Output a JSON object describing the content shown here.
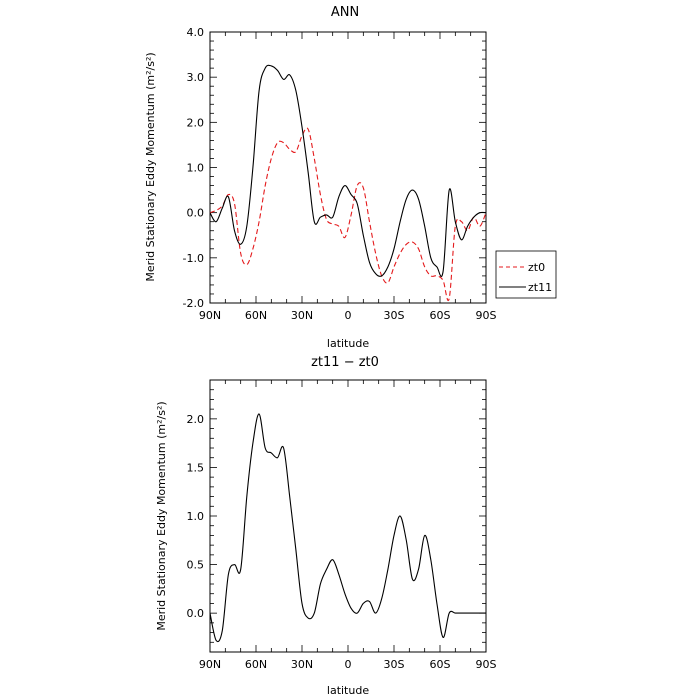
{
  "charts": [
    {
      "id": "top",
      "type": "line",
      "title": "ANN",
      "xlabel": "latitude",
      "ylabel": "Merid Stationary Eddy Momentum  (m²/s²)",
      "x_direction": "north-to-south",
      "xlim": [
        90,
        -90
      ],
      "ylim": [
        -2.0,
        4.0
      ],
      "x_tick_labels": [
        "90N",
        "60N",
        "30N",
        "0",
        "30S",
        "60S",
        "90S"
      ],
      "y_tick_labels": [
        "-2.0",
        "-1.0",
        "0.0",
        "1.0",
        "2.0",
        "3.0",
        "4.0"
      ],
      "y_tick_values": [
        -2,
        -1,
        0,
        1,
        2,
        3,
        4
      ],
      "legend_position": "outside-right",
      "series": [
        {
          "name": "zt0",
          "color": "#e41a1c",
          "dash": "dashed",
          "x": [
            90,
            86,
            82,
            78,
            74,
            70,
            66,
            62,
            58,
            54,
            50,
            46,
            42,
            38,
            34,
            30,
            26,
            22,
            18,
            14,
            10,
            6,
            2,
            -2,
            -6,
            -10,
            -14,
            -18,
            -22,
            -26,
            -30,
            -34,
            -38,
            -42,
            -46,
            -50,
            -54,
            -58,
            -62,
            -66,
            -70,
            -74,
            -78,
            -82,
            -86,
            -90
          ],
          "y": [
            0.0,
            0.05,
            0.15,
            0.4,
            0.2,
            -0.9,
            -1.15,
            -0.8,
            -0.2,
            0.6,
            1.2,
            1.55,
            1.55,
            1.4,
            1.35,
            1.7,
            1.85,
            1.2,
            0.4,
            -0.15,
            -0.25,
            -0.3,
            -0.55,
            -0.05,
            0.6,
            0.55,
            -0.2,
            -0.9,
            -1.4,
            -1.55,
            -1.2,
            -0.9,
            -0.7,
            -0.65,
            -0.8,
            -1.2,
            -1.4,
            -1.4,
            -1.5,
            -1.9,
            -0.3,
            -0.2,
            -0.4,
            -0.1,
            -0.3,
            0.0
          ]
        },
        {
          "name": "zt11",
          "color": "#000000",
          "dash": "solid",
          "x": [
            90,
            86,
            82,
            78,
            74,
            70,
            66,
            62,
            58,
            54,
            50,
            46,
            42,
            38,
            34,
            30,
            26,
            22,
            18,
            14,
            10,
            6,
            2,
            -2,
            -6,
            -10,
            -14,
            -18,
            -22,
            -26,
            -30,
            -34,
            -38,
            -42,
            -46,
            -50,
            -54,
            -58,
            -62,
            -66,
            -70,
            -74,
            -78,
            -82,
            -86,
            -90
          ],
          "y": [
            0.0,
            -0.2,
            0.1,
            0.35,
            -0.4,
            -0.7,
            -0.3,
            1.0,
            2.7,
            3.2,
            3.25,
            3.15,
            2.95,
            3.05,
            2.7,
            1.9,
            0.9,
            -0.2,
            -0.1,
            -0.05,
            -0.1,
            0.35,
            0.6,
            0.4,
            0.2,
            -0.5,
            -1.1,
            -1.35,
            -1.4,
            -1.2,
            -0.8,
            -0.2,
            0.3,
            0.5,
            0.3,
            -0.3,
            -1.0,
            -1.2,
            -1.3,
            0.5,
            -0.2,
            -0.6,
            -0.3,
            -0.1,
            0.0,
            0.0
          ]
        }
      ]
    },
    {
      "id": "bottom",
      "type": "line",
      "title": "zt11 − zt0",
      "xlabel": "latitude",
      "ylabel": "Merid Stationary Eddy Momentum  (m²/s²)",
      "x_direction": "north-to-south",
      "xlim": [
        90,
        -90
      ],
      "ylim": [
        -0.4,
        2.4
      ],
      "x_tick_labels": [
        "90N",
        "60N",
        "30N",
        "0",
        "30S",
        "60S",
        "90S"
      ],
      "y_tick_labels": [
        "0.0",
        "0.5",
        "1.0",
        "1.5",
        "2.0"
      ],
      "y_tick_values": [
        0,
        0.5,
        1.0,
        1.5,
        2.0
      ],
      "series": [
        {
          "name": "",
          "color": "#000000",
          "dash": "solid",
          "x": [
            90,
            86,
            82,
            78,
            74,
            70,
            66,
            62,
            58,
            54,
            50,
            46,
            42,
            38,
            34,
            30,
            26,
            22,
            18,
            14,
            10,
            6,
            2,
            -2,
            -6,
            -10,
            -14,
            -18,
            -22,
            -26,
            -30,
            -34,
            -38,
            -42,
            -46,
            -50,
            -54,
            -58,
            -62,
            -66,
            -70,
            -74,
            -78,
            -82,
            -86,
            -90
          ],
          "y": [
            0.0,
            -0.28,
            -0.18,
            0.4,
            0.5,
            0.45,
            1.2,
            1.75,
            2.05,
            1.7,
            1.65,
            1.6,
            1.7,
            1.2,
            0.65,
            0.1,
            -0.05,
            0.0,
            0.3,
            0.45,
            0.55,
            0.4,
            0.2,
            0.05,
            0.0,
            0.1,
            0.12,
            0.0,
            0.15,
            0.45,
            0.8,
            1.0,
            0.75,
            0.35,
            0.45,
            0.8,
            0.55,
            0.1,
            -0.25,
            0.0,
            0.0,
            0.0,
            0.0,
            0.0,
            0.0,
            0.0
          ]
        }
      ]
    }
  ],
  "chart_data": [
    {
      "type": "line",
      "title": "ANN",
      "xlabel": "latitude",
      "ylabel": "Merid Stationary Eddy Momentum  (m²/s²)",
      "xlim": [
        90,
        -90
      ],
      "ylim": [
        -2.0,
        4.0
      ],
      "legend": [
        "zt0",
        "zt11"
      ],
      "legend_position": "outside-right"
    },
    {
      "type": "line",
      "title": "zt11 − zt0",
      "xlabel": "latitude",
      "ylabel": "Merid Stationary Eddy Momentum  (m²/s²)",
      "xlim": [
        90,
        -90
      ],
      "ylim": [
        -0.4,
        2.4
      ]
    }
  ]
}
